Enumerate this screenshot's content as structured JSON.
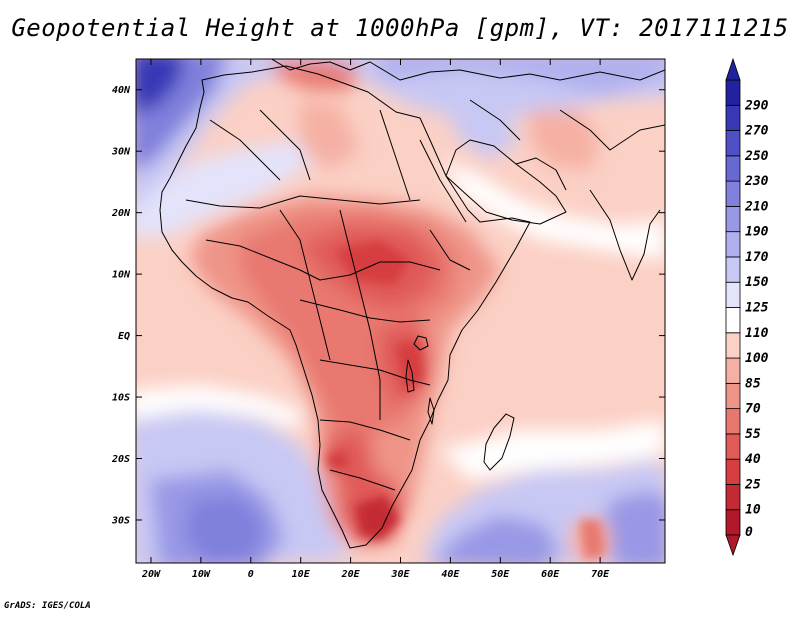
{
  "title": "Geopotential Height at 1000hPa [gpm], VT: 2017111215",
  "credit": "GrADS: IGES/COLA",
  "map": {
    "variable": "Geopotential Height at 1000hPa",
    "units": "gpm",
    "valid_time": "2017111215",
    "lon_range": [
      -23,
      83
    ],
    "lat_range": [
      -37,
      45
    ],
    "lon_ticks": [
      "20W",
      "10W",
      "0",
      "10E",
      "20E",
      "30E",
      "40E",
      "50E",
      "60E",
      "70E"
    ],
    "lat_ticks": [
      "40N",
      "30N",
      "20N",
      "10N",
      "EQ",
      "10S",
      "20S",
      "30S"
    ]
  },
  "colorbar": {
    "labels": [
      "0",
      "10",
      "25",
      "40",
      "55",
      "70",
      "85",
      "100",
      "110",
      "125",
      "150",
      "170",
      "190",
      "210",
      "230",
      "250",
      "270",
      "290"
    ],
    "colors": [
      "#b2182b",
      "#c42a34",
      "#d63e40",
      "#e05a58",
      "#e8786f",
      "#ef9488",
      "#f5b0a3",
      "#fbd0c5",
      "#ffffff",
      "#e3e3fb",
      "#c8c8f4",
      "#b0b0ee",
      "#9898e6",
      "#8080dd",
      "#6868d2",
      "#5050c6",
      "#3838b6",
      "#2222a0"
    ]
  }
}
